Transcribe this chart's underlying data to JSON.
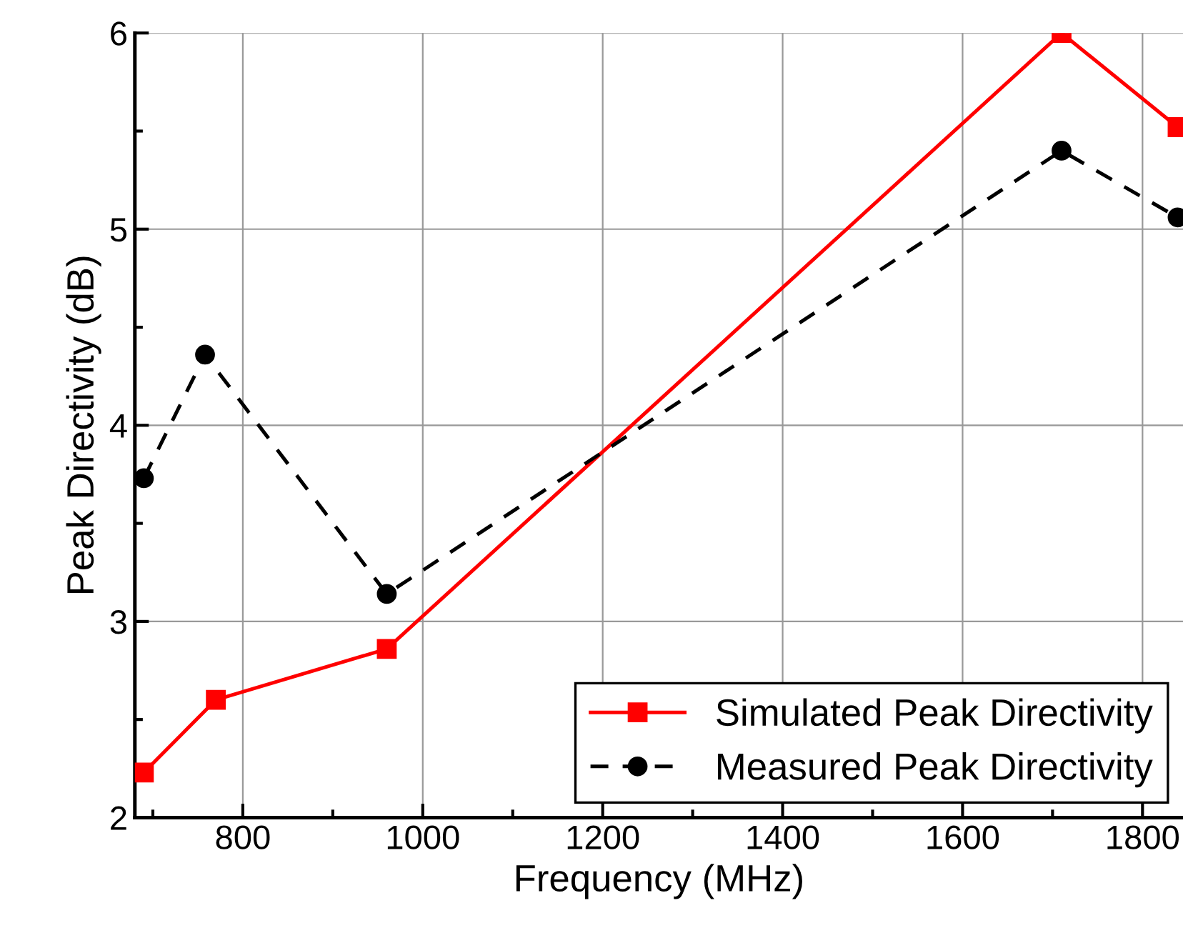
{
  "chart_data": {
    "type": "line",
    "xlabel": "Frequency (MHz)",
    "ylabel": "Peak Directivity (dB)",
    "xlim": [
      680,
      1845
    ],
    "xticks": [
      800,
      1000,
      1200,
      1400,
      1600,
      1800
    ],
    "ylim": [
      2,
      6
    ],
    "yticks": [
      2,
      3,
      4,
      5,
      6
    ],
    "grid": true,
    "legend": "bottom right",
    "series": [
      {
        "name": "Simulated Peak Directivity",
        "color": "#ff0000",
        "marker": "square",
        "line_style": "solid",
        "x": [
          690,
          770,
          960,
          1710,
          1839
        ],
        "values": [
          2.23,
          2.6,
          2.86,
          6.0,
          5.52
        ]
      },
      {
        "name": "Measured Peak Directivity",
        "color": "#000000",
        "marker": "circle",
        "line_style": "dashed",
        "x": [
          690,
          758,
          960,
          1710,
          1839
        ],
        "values": [
          3.73,
          4.36,
          3.14,
          5.4,
          5.06
        ]
      }
    ]
  }
}
